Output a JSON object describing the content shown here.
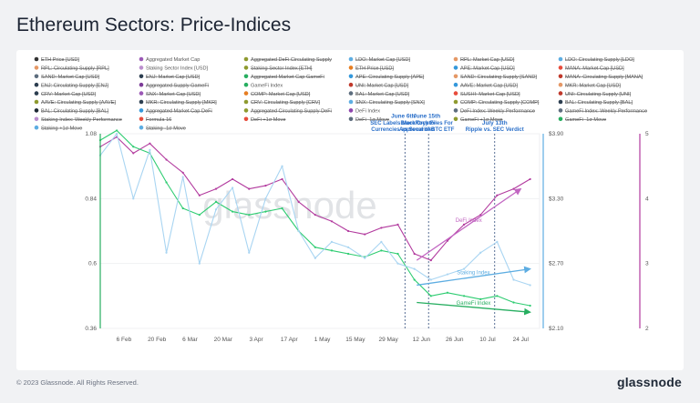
{
  "title": "Ethereum Sectors: Price-Indices",
  "footer": {
    "copyright": "© 2023 Glassnode. All Rights Reserved.",
    "brand": "glassnode"
  },
  "watermark": "glassnode",
  "legend": [
    {
      "label": "ETH Price [USD]",
      "color": "#333333",
      "struck": true
    },
    {
      "label": "Aggregated Market Cap",
      "color": "#9b59b6",
      "struck": false
    },
    {
      "label": "Aggregated DeFi Circulating Supply",
      "color": "#8e9a2f",
      "struck": true
    },
    {
      "label": "LDO: Market Cap [USD]",
      "color": "#5dade2",
      "struck": true
    },
    {
      "label": "RPL: Market Cap [USD]",
      "color": "#e59866",
      "struck": true
    },
    {
      "label": "LDO: Circulating Supply [LDO]",
      "color": "#5dade2",
      "struck": true
    },
    {
      "label": "RPL: Circulating Supply [RPL]",
      "color": "#e59866",
      "struck": true
    },
    {
      "label": "Staking Sector Index [USD]",
      "color": "#bb8fce",
      "struck": false
    },
    {
      "label": "Staking Sector Index [ETH]",
      "color": "#8e9a2f",
      "struck": true
    },
    {
      "label": "ETH Price [USD]",
      "color": "#e67e22",
      "struck": true
    },
    {
      "label": "APE: Market Cap [USD]",
      "color": "#3498db",
      "struck": true
    },
    {
      "label": "MANA: Market Cap [USD]",
      "color": "#e74c3c",
      "struck": true
    },
    {
      "label": "SAND: Market Cap [USD]",
      "color": "#5d6d7e",
      "struck": true
    },
    {
      "label": "ENJ: Market Cap [USD]",
      "color": "#2c3e50",
      "struck": true
    },
    {
      "label": "Aggregated Market Cap GameFi",
      "color": "#27ae60",
      "struck": true
    },
    {
      "label": "APE: Circulating Supply [APE]",
      "color": "#3498db",
      "struck": true
    },
    {
      "label": "SAND: Circulating Supply [SAND]",
      "color": "#e59866",
      "struck": true
    },
    {
      "label": "MANA: Circulating Supply [MANA]",
      "color": "#c0392b",
      "struck": true
    },
    {
      "label": "ENJ: Circulating Supply [ENJ]",
      "color": "#2c3e50",
      "struck": true
    },
    {
      "label": "Aggregated Supply GameFi",
      "color": "#7d3c98",
      "struck": true
    },
    {
      "label": "GameFi Index",
      "color": "#27ae60",
      "struck": false
    },
    {
      "label": "UNI: Market Cap [USD]",
      "color": "#c0392b",
      "struck": true
    },
    {
      "label": "AAVE: Market Cap [USD]",
      "color": "#3498db",
      "struck": true
    },
    {
      "label": "MKR: Market Cap [USD]",
      "color": "#e59866",
      "struck": true
    },
    {
      "label": "CRV: Market Cap [USD]",
      "color": "#2c3e50",
      "struck": true
    },
    {
      "label": "SNX: Market Cap [USD]",
      "color": "#9b59b6",
      "struck": true
    },
    {
      "label": "COMP: Market Cap [USD]",
      "color": "#e67e22",
      "struck": true
    },
    {
      "label": "BAL: Market Cap [USD]",
      "color": "#5d6d7e",
      "struck": true
    },
    {
      "label": "SUSHI: Market Cap [USD]",
      "color": "#e74c3c",
      "struck": true
    },
    {
      "label": "UNI: Circulating Supply [UNI]",
      "color": "#c0392b",
      "struck": true
    },
    {
      "label": "AAVE: Circulating Supply [AAVE]",
      "color": "#8e9a2f",
      "struck": true
    },
    {
      "label": "MKR: Circulating Supply [MKR]",
      "color": "#2c3e50",
      "struck": true
    },
    {
      "label": "CRV: Circulating Supply [CRV]",
      "color": "#8e9a2f",
      "struck": true
    },
    {
      "label": "SNX: Circulating Supply [SNX]",
      "color": "#5dade2",
      "struck": true
    },
    {
      "label": "COMP: Circulating Supply [COMP]",
      "color": "#8e9a2f",
      "struck": true
    },
    {
      "label": "BAL: Circulating Supply [BAL]",
      "color": "#2c3e50",
      "struck": true
    },
    {
      "label": "BAL: Circulating Supply [BAL]",
      "color": "#1c2833",
      "struck": true
    },
    {
      "label": "Aggregated Market Cap DeFi",
      "color": "#3498db",
      "struck": true
    },
    {
      "label": "Aggregated Circulating Supply DeFi",
      "color": "#8e9a2f",
      "struck": true
    },
    {
      "label": "DeFi Index",
      "color": "#8e44ad",
      "struck": false
    },
    {
      "label": "DeFi Index: Weekly Performance",
      "color": "#5d6d7e",
      "struck": true
    },
    {
      "label": "GameFi Index: Weekly Performance",
      "color": "#5d6d7e",
      "struck": true
    },
    {
      "label": "Staking Index: Weekly Performance",
      "color": "#bb8fce",
      "struck": true
    },
    {
      "label": "Formula 16",
      "color": "#e74c3c",
      "struck": true
    },
    {
      "label": "DeFi +1σ Move",
      "color": "#e74c3c",
      "struck": true
    },
    {
      "label": "DeFi -1σ Move",
      "color": "#5d6d7e",
      "struck": true
    },
    {
      "label": "GameFi +1σ Move",
      "color": "#8e9a2f",
      "struck": true
    },
    {
      "label": "GameFi -1σ Move",
      "color": "#27ae60",
      "struck": true
    },
    {
      "label": "Staking +1σ Move",
      "color": "#5dade2",
      "struck": true
    },
    {
      "label": "Staking -1σ Move",
      "color": "#5dade2",
      "struck": true
    }
  ],
  "chart_data": {
    "type": "line",
    "title": "Ethereum Sectors: Price-Indices",
    "x_ticks": [
      "6 Feb",
      "20 Feb",
      "6 Mar",
      "20 Mar",
      "3 Apr",
      "17 Apr",
      "1 May",
      "15 May",
      "29 May",
      "12 Jun",
      "26 Jun",
      "10 Jul",
      "24 Jul"
    ],
    "y_left": {
      "ticks": [
        0.36,
        0.6,
        0.84,
        1.08
      ],
      "ylim": [
        0.36,
        1.08
      ]
    },
    "y_right_usd": {
      "ticks": [
        "$2.10",
        "$2.70",
        "$3.30",
        "$3.90"
      ],
      "ylim": [
        2.1,
        3.9
      ]
    },
    "y_right_index": {
      "ticks": [
        2,
        3,
        4,
        5
      ],
      "ylim": [
        2,
        5
      ]
    },
    "x_range": [
      "2023-01-27",
      "2023-08-01"
    ],
    "series": [
      {
        "name": "DeFi Index",
        "color": "#b23a9e",
        "axis": "index",
        "x": [
          "2023-01-27",
          "2023-02-03",
          "2023-02-10",
          "2023-02-17",
          "2023-02-24",
          "2023-03-03",
          "2023-03-10",
          "2023-03-17",
          "2023-03-24",
          "2023-03-31",
          "2023-04-07",
          "2023-04-14",
          "2023-04-21",
          "2023-04-28",
          "2023-05-05",
          "2023-05-12",
          "2023-05-19",
          "2023-05-26",
          "2023-06-02",
          "2023-06-09",
          "2023-06-16",
          "2023-06-23",
          "2023-06-30",
          "2023-07-07",
          "2023-07-14",
          "2023-07-21",
          "2023-07-28"
        ],
        "values": [
          4.8,
          4.95,
          4.7,
          4.85,
          4.6,
          4.4,
          4.05,
          4.15,
          4.3,
          4.15,
          4.2,
          4.3,
          3.95,
          3.75,
          3.65,
          3.5,
          3.45,
          3.55,
          3.6,
          3.15,
          3.05,
          3.35,
          3.6,
          3.75,
          4.05,
          4.15,
          4.3
        ]
      },
      {
        "name": "GameFi Index",
        "color": "#2ecc71",
        "axis": "index",
        "x": [
          "2023-01-27",
          "2023-02-03",
          "2023-02-10",
          "2023-02-17",
          "2023-02-24",
          "2023-03-03",
          "2023-03-10",
          "2023-03-17",
          "2023-03-24",
          "2023-03-31",
          "2023-04-07",
          "2023-04-14",
          "2023-04-21",
          "2023-04-28",
          "2023-05-05",
          "2023-05-12",
          "2023-05-19",
          "2023-05-26",
          "2023-06-02",
          "2023-06-09",
          "2023-06-16",
          "2023-06-23",
          "2023-06-30",
          "2023-07-07",
          "2023-07-14",
          "2023-07-21",
          "2023-07-28"
        ],
        "values": [
          4.9,
          5.05,
          4.8,
          4.7,
          4.25,
          3.85,
          3.75,
          3.95,
          3.8,
          3.75,
          3.8,
          3.85,
          3.5,
          3.25,
          3.2,
          3.15,
          3.1,
          3.2,
          3.15,
          2.75,
          2.5,
          2.55,
          2.5,
          2.45,
          2.5,
          2.4,
          2.35
        ]
      },
      {
        "name": "Staking Sector Index [USD]",
        "color": "#a9d5f2",
        "axis": "usd",
        "x": [
          "2023-01-27",
          "2023-02-03",
          "2023-02-10",
          "2023-02-17",
          "2023-02-24",
          "2023-03-03",
          "2023-03-10",
          "2023-03-17",
          "2023-03-24",
          "2023-03-31",
          "2023-04-07",
          "2023-04-14",
          "2023-04-21",
          "2023-04-28",
          "2023-05-05",
          "2023-05-12",
          "2023-05-19",
          "2023-05-26",
          "2023-06-02",
          "2023-06-09",
          "2023-06-16",
          "2023-06-23",
          "2023-06-30",
          "2023-07-07",
          "2023-07-14",
          "2023-07-21",
          "2023-07-28"
        ],
        "values": [
          3.7,
          3.9,
          3.3,
          3.75,
          2.8,
          3.5,
          2.7,
          3.2,
          3.4,
          2.8,
          3.3,
          3.6,
          3.0,
          2.75,
          2.9,
          2.85,
          2.75,
          2.9,
          2.7,
          2.65,
          2.55,
          2.6,
          2.65,
          2.8,
          2.9,
          2.55,
          2.5
        ]
      }
    ],
    "trendlines": [
      {
        "series": "DeFi Index",
        "label": "DeFi Index",
        "color": "#c266c2",
        "from": {
          "x": "2023-06-10",
          "y": 3.05
        },
        "to": {
          "x": "2023-07-24",
          "y": 4.15
        }
      },
      {
        "series": "Staking Sector Index [USD]",
        "label": "Staking Index",
        "color": "#5dade2",
        "from": {
          "x": "2023-06-10",
          "y": 2.5
        },
        "to": {
          "x": "2023-07-28",
          "y": 2.65
        }
      },
      {
        "series": "GameFi Index",
        "label": "GameFi Index",
        "color": "#27ae60",
        "from": {
          "x": "2023-06-10",
          "y": 2.4
        },
        "to": {
          "x": "2023-07-28",
          "y": 2.25
        }
      }
    ],
    "annotations": [
      {
        "date": "2023-06-05",
        "label": "June 6th\nSEC Labels More Crypto-\nCurrencies as Securities"
      },
      {
        "date": "2023-06-15",
        "label": "June 15th\nBlackRock Files For\nApproval of BTC ETF"
      },
      {
        "date": "2023-07-13",
        "label": "July 13th\nRipple vs. SEC Verdict"
      }
    ]
  }
}
